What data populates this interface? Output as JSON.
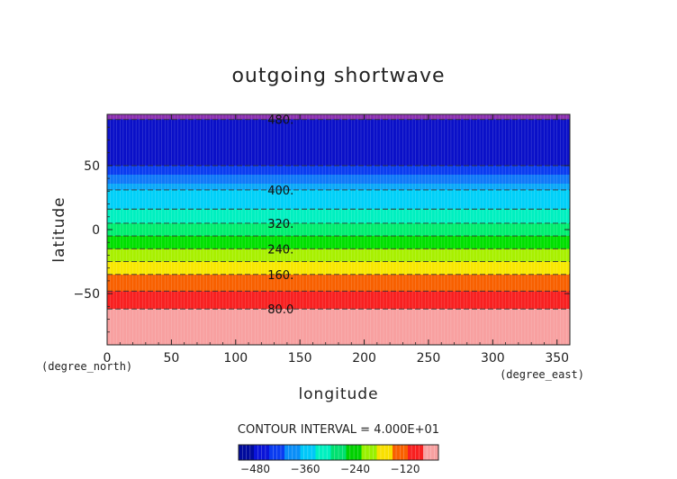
{
  "chart_data": {
    "type": "heatmap",
    "title": "outgoing shortwave",
    "xlabel": "longitude",
    "ylabel": "latitude",
    "x_unit": "(degree_east)",
    "y_unit": "(degree_north)",
    "xlim": [
      0,
      360
    ],
    "ylim": [
      -90,
      90
    ],
    "x_ticks": [
      0,
      50,
      100,
      150,
      200,
      250,
      300,
      350
    ],
    "y_ticks": [
      -50,
      0,
      50
    ],
    "x_tick_labels": [
      "0",
      "50",
      "100",
      "150",
      "200",
      "250",
      "300",
      "350"
    ],
    "y_tick_labels": [
      "−50",
      "0",
      "50"
    ],
    "grid": false,
    "contour_interval_text": "CONTOUR INTERVAL = 4.000E+01",
    "bands": [
      {
        "lat_min": 86,
        "lat_max": 90,
        "color": "#8b2fb0"
      },
      {
        "lat_min": 50,
        "lat_max": 86,
        "color": "#0a10c8"
      },
      {
        "lat_min": 43,
        "lat_max": 50,
        "color": "#0a3cf0"
      },
      {
        "lat_min": 36,
        "lat_max": 43,
        "color": "#1078f8"
      },
      {
        "lat_min": 31,
        "lat_max": 36,
        "color": "#0aa8f8"
      },
      {
        "lat_min": 16,
        "lat_max": 31,
        "color": "#00d0f8"
      },
      {
        "lat_min": 5,
        "lat_max": 16,
        "color": "#00f0c0"
      },
      {
        "lat_min": -5,
        "lat_max": 5,
        "color": "#00ee70"
      },
      {
        "lat_min": -15,
        "lat_max": -5,
        "color": "#00e000"
      },
      {
        "lat_min": -25,
        "lat_max": -15,
        "color": "#a8f000"
      },
      {
        "lat_min": -35,
        "lat_max": -25,
        "color": "#f8e800"
      },
      {
        "lat_min": -48,
        "lat_max": -35,
        "color": "#f86000"
      },
      {
        "lat_min": -62,
        "lat_max": -48,
        "color": "#f82020"
      },
      {
        "lat_min": -90,
        "lat_max": -62,
        "color": "#f8a0a0"
      }
    ],
    "contour_lines": [
      {
        "lat": 86,
        "value": "480."
      },
      {
        "lat": 50,
        "value": ""
      },
      {
        "lat": 31,
        "value": "400."
      },
      {
        "lat": 16,
        "value": ""
      },
      {
        "lat": 5,
        "value": "320."
      },
      {
        "lat": -5,
        "value": ""
      },
      {
        "lat": -15,
        "value": "240."
      },
      {
        "lat": -25,
        "value": ""
      },
      {
        "lat": -35,
        "value": "160."
      },
      {
        "lat": -48,
        "value": ""
      },
      {
        "lat": -62,
        "value": "80.0"
      }
    ],
    "colorbar": {
      "colors": [
        "#000a9c",
        "#0a14d8",
        "#0a3cf0",
        "#0a8ef8",
        "#00c8f8",
        "#00f0c0",
        "#00e070",
        "#00d000",
        "#98f000",
        "#f8e000",
        "#f86000",
        "#f82020",
        "#f8a0a0"
      ],
      "tick_values": [
        -480,
        -360,
        -240,
        -120
      ],
      "tick_labels": [
        "−480",
        "−360",
        "−240",
        "−120"
      ],
      "range": [
        -520,
        -40
      ]
    }
  },
  "colors": {
    "axis": "#222222",
    "contour": "#333333",
    "background": "#ffffff"
  }
}
